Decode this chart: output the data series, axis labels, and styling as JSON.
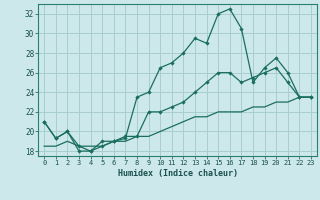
{
  "xlabel": "Humidex (Indice chaleur)",
  "xlim": [
    -0.5,
    23.5
  ],
  "ylim": [
    17.5,
    33.0
  ],
  "yticks": [
    18,
    20,
    22,
    24,
    26,
    28,
    30,
    32
  ],
  "xticks": [
    0,
    1,
    2,
    3,
    4,
    5,
    6,
    7,
    8,
    9,
    10,
    11,
    12,
    13,
    14,
    15,
    16,
    17,
    18,
    19,
    20,
    21,
    22,
    23
  ],
  "bg_color": "#cde8ea",
  "grid_color": "#a8cdd0",
  "line_color": "#1a6e60",
  "line1_x": [
    0,
    1,
    2,
    3,
    4,
    5,
    6,
    7,
    8,
    9,
    10,
    11,
    12,
    13,
    14,
    15,
    16,
    17,
    18,
    19,
    20,
    21,
    22,
    23
  ],
  "line1_y": [
    21.0,
    19.3,
    20.0,
    18.0,
    18.0,
    19.0,
    19.0,
    19.3,
    23.5,
    24.0,
    26.5,
    27.0,
    28.0,
    29.5,
    29.0,
    32.0,
    32.5,
    30.5,
    25.0,
    26.5,
    27.5,
    26.0,
    23.5,
    23.5
  ],
  "line2_x": [
    0,
    1,
    2,
    3,
    4,
    5,
    6,
    7,
    8,
    9,
    10,
    11,
    12,
    13,
    14,
    15,
    16,
    17,
    18,
    19,
    20,
    21,
    22,
    23
  ],
  "line2_y": [
    21.0,
    19.3,
    20.0,
    18.5,
    18.0,
    18.5,
    19.0,
    19.5,
    19.5,
    22.0,
    22.0,
    22.5,
    23.0,
    24.0,
    25.0,
    26.0,
    26.0,
    25.0,
    25.5,
    26.0,
    26.5,
    25.0,
    23.5,
    23.5
  ],
  "line3_x": [
    0,
    1,
    2,
    3,
    4,
    5,
    6,
    7,
    8,
    9,
    10,
    11,
    12,
    13,
    14,
    15,
    16,
    17,
    18,
    19,
    20,
    21,
    22,
    23
  ],
  "line3_y": [
    18.5,
    18.5,
    19.0,
    18.5,
    18.5,
    18.5,
    19.0,
    19.0,
    19.5,
    19.5,
    20.0,
    20.5,
    21.0,
    21.5,
    21.5,
    22.0,
    22.0,
    22.0,
    22.5,
    22.5,
    23.0,
    23.0,
    23.5,
    23.5
  ]
}
